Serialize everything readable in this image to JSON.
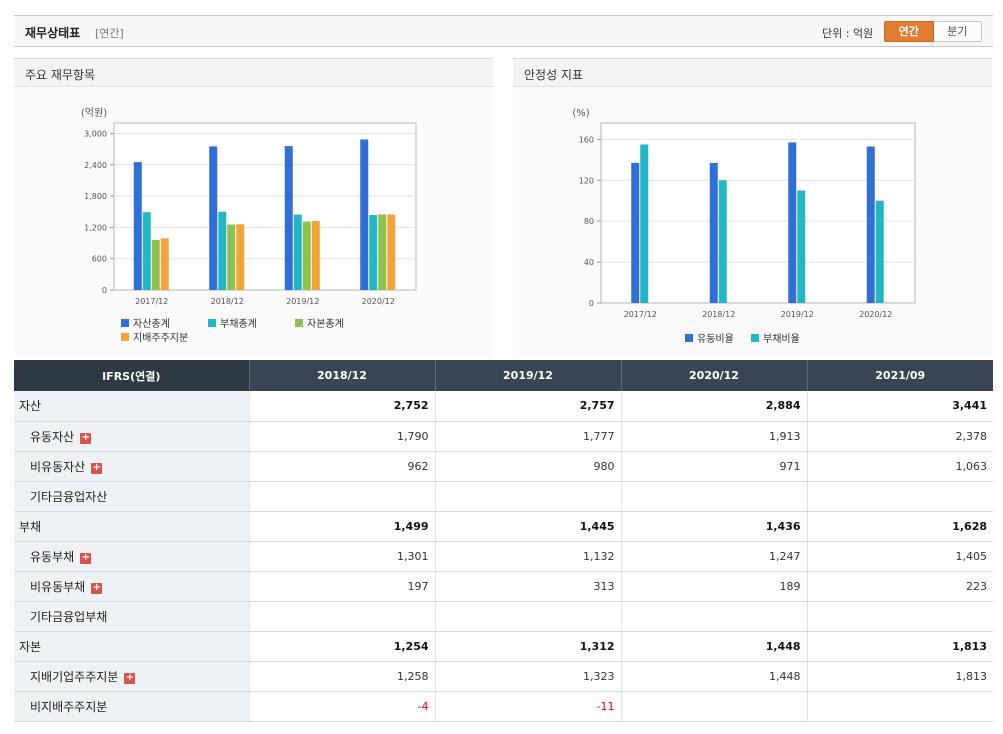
{
  "header": {
    "title": "재무상태표",
    "subtitle": "[연간]",
    "unit_label": "단위 : 억원",
    "toggle_annual": "연간",
    "toggle_quarter": "분기"
  },
  "panels": {
    "left_title": "주요 재무항목",
    "right_title": "안정성 지표"
  },
  "colors": {
    "blue": "#2f6fd6",
    "teal": "#23b6c6",
    "green": "#8ec14e",
    "orange": "#f2a33a",
    "header_dark": "#3a4553",
    "accent_orange": "#e07b2f"
  },
  "chart_data": [
    {
      "type": "bar",
      "ylabel": "(억원)",
      "categories": [
        "2017/12",
        "2018/12",
        "2019/12",
        "2020/12"
      ],
      "ylim": [
        0,
        3200
      ],
      "yticks": [
        0,
        600,
        1200,
        1800,
        2400,
        3000
      ],
      "ytick_labels": [
        "0",
        "600",
        "1,200",
        "1,800",
        "2,400",
        "3,000"
      ],
      "grid": true,
      "legend_position": "bottom",
      "series": [
        {
          "name": "자산총계",
          "color": "#2f6fd6",
          "values": [
            2450,
            2752,
            2757,
            2884
          ]
        },
        {
          "name": "부채총계",
          "color": "#23b6c6",
          "values": [
            1490,
            1499,
            1445,
            1436
          ]
        },
        {
          "name": "자본총계",
          "color": "#8ec14e",
          "values": [
            960,
            1254,
            1312,
            1448
          ]
        },
        {
          "name": "지배주주지분",
          "color": "#f2a33a",
          "values": [
            990,
            1258,
            1323,
            1448
          ]
        }
      ]
    },
    {
      "type": "bar",
      "ylabel": "(%)",
      "categories": [
        "2017/12",
        "2018/12",
        "2019/12",
        "2020/12"
      ],
      "ylim": [
        0,
        176
      ],
      "yticks": [
        0,
        40,
        80,
        120,
        160
      ],
      "ytick_labels": [
        "0",
        "40",
        "80",
        "120",
        "160"
      ],
      "grid": true,
      "legend_position": "bottom",
      "series": [
        {
          "name": "유동비율",
          "color": "#2f6fd6",
          "values": [
            137,
            137,
            157,
            153
          ]
        },
        {
          "name": "부채비율",
          "color": "#23b6c6",
          "values": [
            155,
            120,
            110,
            100
          ]
        }
      ]
    }
  ],
  "table": {
    "columns": [
      "IFRS(연결)",
      "2018/12",
      "2019/12",
      "2020/12",
      "2021/09"
    ],
    "rows": [
      {
        "label": "자산",
        "level": 0,
        "expand": false,
        "bold": true,
        "values": [
          "2,752",
          "2,757",
          "2,884",
          "3,441"
        ]
      },
      {
        "label": "유동자산",
        "level": 1,
        "expand": true,
        "bold": false,
        "values": [
          "1,790",
          "1,777",
          "1,913",
          "2,378"
        ]
      },
      {
        "label": "비유동자산",
        "level": 1,
        "expand": true,
        "bold": false,
        "values": [
          "962",
          "980",
          "971",
          "1,063"
        ]
      },
      {
        "label": "기타금융업자산",
        "level": 1,
        "expand": false,
        "bold": false,
        "values": [
          "",
          "",
          "",
          ""
        ]
      },
      {
        "label": "부채",
        "level": 0,
        "expand": false,
        "bold": true,
        "values": [
          "1,499",
          "1,445",
          "1,436",
          "1,628"
        ]
      },
      {
        "label": "유동부채",
        "level": 1,
        "expand": true,
        "bold": false,
        "values": [
          "1,301",
          "1,132",
          "1,247",
          "1,405"
        ]
      },
      {
        "label": "비유동부채",
        "level": 1,
        "expand": true,
        "bold": false,
        "values": [
          "197",
          "313",
          "189",
          "223"
        ]
      },
      {
        "label": "기타금융업부채",
        "level": 1,
        "expand": false,
        "bold": false,
        "values": [
          "",
          "",
          "",
          ""
        ]
      },
      {
        "label": "자본",
        "level": 0,
        "expand": false,
        "bold": true,
        "values": [
          "1,254",
          "1,312",
          "1,448",
          "1,813"
        ]
      },
      {
        "label": "지배기업주주지분",
        "level": 1,
        "expand": true,
        "bold": false,
        "values": [
          "1,258",
          "1,323",
          "1,448",
          "1,813"
        ]
      },
      {
        "label": "비지배주주지분",
        "level": 1,
        "expand": false,
        "bold": false,
        "values": [
          "-4",
          "-11",
          "",
          ""
        ]
      }
    ]
  }
}
